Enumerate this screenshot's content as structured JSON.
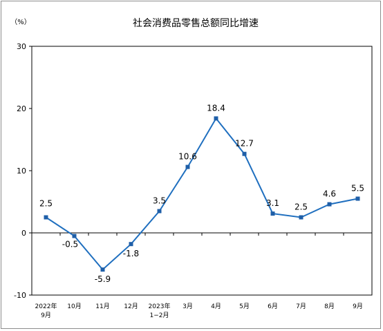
{
  "chart_data": {
    "type": "line",
    "title": "社会消费品零售总额同比增速",
    "unit_label": "（%）",
    "ylim": [
      -10,
      30
    ],
    "yticks": [
      -10,
      0,
      10,
      20,
      30
    ],
    "categories": [
      [
        "2022年",
        "9月"
      ],
      [
        "10月"
      ],
      [
        "11月"
      ],
      [
        "12月"
      ],
      [
        "2023年",
        "1−2月"
      ],
      [
        "3月"
      ],
      [
        "4月"
      ],
      [
        "5月"
      ],
      [
        "6月"
      ],
      [
        "7月"
      ],
      [
        "8月"
      ],
      [
        "9月"
      ]
    ],
    "values": [
      2.5,
      -0.5,
      -5.9,
      -1.8,
      3.5,
      10.6,
      18.4,
      12.7,
      3.1,
      2.5,
      4.6,
      5.5
    ],
    "data_labels": [
      "2.5",
      "-0.5",
      "-5.9",
      "-1.8",
      "3.5",
      "10.6",
      "18.4",
      "12.7",
      "3.1",
      "2.5",
      "4.6",
      "5.5"
    ],
    "line_color": "#1f6fbf",
    "marker_color": "#1f5fa8",
    "grid": false
  }
}
